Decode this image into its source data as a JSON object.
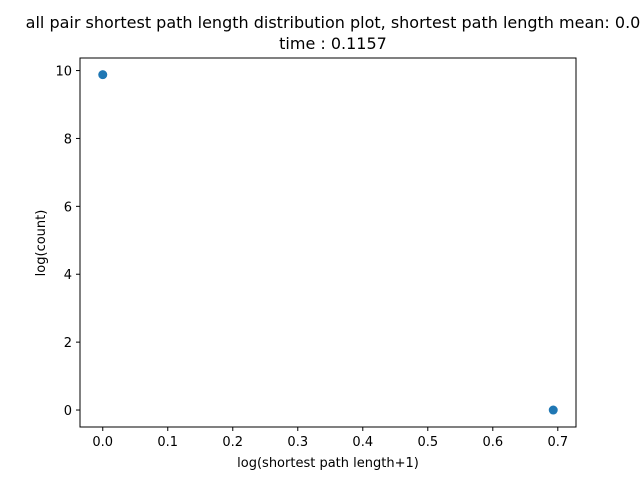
{
  "chart_data": {
    "type": "scatter",
    "title": "all pair shortest path length distribution plot, shortest path length mean: 0.0",
    "subtitle": "time : 0.1157",
    "xlabel": "log(shortest path length+1)",
    "ylabel": "log(count)",
    "xlim": [
      -0.035,
      0.728
    ],
    "ylim": [
      -0.5,
      10.37
    ],
    "xticks": [
      0.0,
      0.1,
      0.2,
      0.3,
      0.4,
      0.5,
      0.6,
      0.7
    ],
    "xtick_labels": [
      "0.0",
      "0.1",
      "0.2",
      "0.3",
      "0.4",
      "0.5",
      "0.6",
      "0.7"
    ],
    "yticks": [
      0,
      2,
      4,
      6,
      8,
      10
    ],
    "ytick_labels": [
      "0",
      "2",
      "4",
      "6",
      "8",
      "10"
    ],
    "grid": false,
    "marker_color": "#1f77b4",
    "points": [
      {
        "x": 0.0,
        "y": 9.88
      },
      {
        "x": 0.693,
        "y": 0.0
      }
    ]
  }
}
